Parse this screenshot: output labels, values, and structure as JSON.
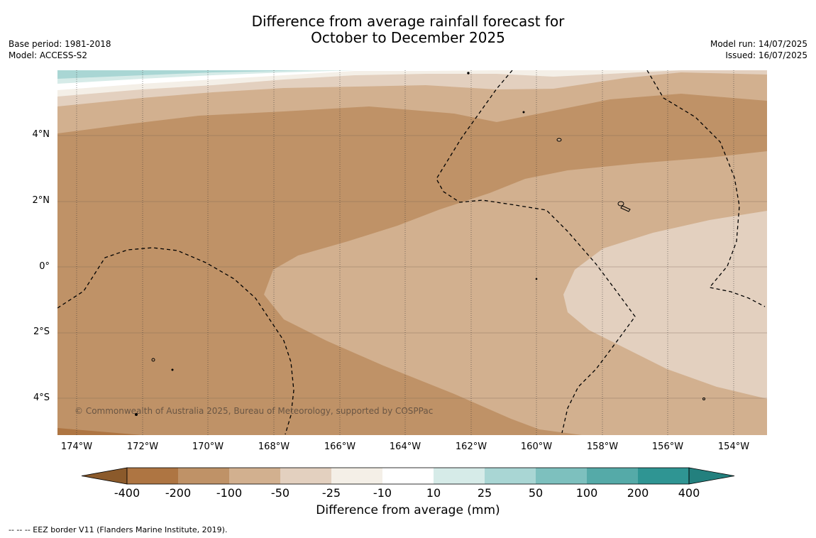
{
  "title_line1": "Difference from average rainfall forecast for",
  "title_line2": "October to December 2025",
  "base_period": "Base period: 1981-2018",
  "model": "Model: ACCESS-S2",
  "model_run": "Model run: 14/07/2025",
  "issued": "Issued: 16/07/2025",
  "map": {
    "lat_labels": [
      "4°N",
      "2°N",
      "0°",
      "2°S",
      "4°S"
    ],
    "lon_labels": [
      "174°W",
      "172°W",
      "170°W",
      "168°W",
      "166°W",
      "164°W",
      "162°W",
      "160°W",
      "158°W",
      "156°W",
      "154°W"
    ],
    "copyright": "© Commonwealth of Australia 2025, Bureau of Meteorology, supported by COSPPac"
  },
  "colorbar": {
    "labels": [
      "-400",
      "-200",
      "-100",
      "-50",
      "-25",
      "-10",
      "10",
      "25",
      "50",
      "100",
      "200",
      "400"
    ],
    "colors": [
      "#8b5a2b",
      "#ae7542",
      "#bf9267",
      "#d2b08f",
      "#e3d0bf",
      "#f4efe7",
      "#ffffff",
      "#d6ebe8",
      "#a9d6d4",
      "#7dc0be",
      "#55aaa8",
      "#2f9593",
      "#23807e"
    ],
    "title": "Difference from average (mm)"
  },
  "footnote": "--  --  -- EEZ border V11 (Flanders Marine Institute, 2019)."
}
